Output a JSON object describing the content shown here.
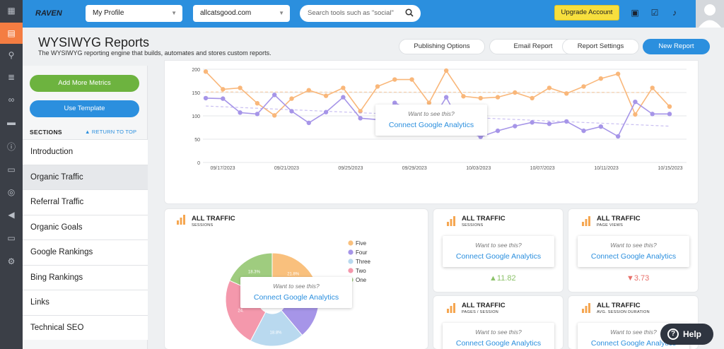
{
  "topbar": {
    "logo": "RAVEN",
    "profile_select": "My Profile",
    "domain_select": "allcatsgood.com",
    "search_placeholder": "Search tools such as \"social\"",
    "upgrade_label": "Upgrade Account"
  },
  "header": {
    "title": "WYSIWYG Reports",
    "subtitle": "The WYSIWYG reporting engine that builds, automates and stores custom reports.",
    "buttons": [
      "Publishing Options",
      "Email Report",
      "Report Settings",
      "New Report"
    ]
  },
  "sidebar": {
    "add_metrics": "Add More Metrics",
    "use_template": "Use Template",
    "sections_label": "SECTIONS",
    "return_top": "RETURN TO TOP",
    "items": [
      "Introduction",
      "Organic Traffic",
      "Referral Traffic",
      "Organic Goals",
      "Google Rankings",
      "Bing Rankings",
      "Links",
      "Technical SEO"
    ]
  },
  "overlay": {
    "want": "Want to see this?",
    "connect": "Connect Google Analytics"
  },
  "cards": {
    "sessions_pie": {
      "title": "ALL TRAFFIC",
      "sub": "SESSIONS"
    },
    "sessions": {
      "title": "ALL TRAFFIC",
      "sub": "SESSIONS",
      "delta": "▲11.82"
    },
    "pageviews": {
      "title": "ALL TRAFFIC",
      "sub": "PAGE VIEWS",
      "delta": "▼3.73"
    },
    "pages_session": {
      "title": "ALL TRAFFIC",
      "sub": "PAGES / SESSION"
    },
    "avg_duration": {
      "title": "ALL TRAFFIC",
      "sub": "AVG. SESSION DURATION"
    }
  },
  "help": "Help",
  "colors": {
    "accent": "#2b8fde",
    "orange": "#f9b77a",
    "purple": "#a695e8",
    "green": "#7ab648"
  },
  "chart_data": [
    {
      "type": "line",
      "x_labels": [
        "09/17/2023",
        "09/21/2023",
        "09/25/2023",
        "09/29/2023",
        "10/03/2023",
        "10/07/2023",
        "10/11/2023",
        "10/15/2023"
      ],
      "y_ticks": [
        "200",
        "150",
        "100",
        "50",
        "0"
      ],
      "ylim": [
        0,
        200
      ],
      "series": [
        {
          "values": [
            195,
            157,
            160,
            127,
            101,
            137,
            155,
            143,
            160,
            110,
            163,
            178,
            178,
            128,
            197,
            142,
            138,
            140,
            150,
            138,
            160,
            148,
            163,
            180,
            190,
            103,
            160,
            120
          ]
        },
        {
          "values": [
            138,
            137,
            107,
            104,
            145,
            110,
            85,
            108,
            140,
            95,
            92,
            128,
            110,
            80,
            140,
            70,
            55,
            68,
            78,
            86,
            83,
            88,
            68,
            77,
            56,
            130,
            104,
            104
          ]
        }
      ]
    },
    {
      "type": "pie",
      "labels": [
        "Five",
        "Four",
        "Three",
        "Two",
        "One"
      ],
      "slice_labels": [
        "21.8%",
        "",
        "18.8%",
        "24.",
        "18.3%"
      ],
      "values": [
        21.8,
        17.1,
        18.8,
        24.0,
        18.3
      ]
    }
  ]
}
